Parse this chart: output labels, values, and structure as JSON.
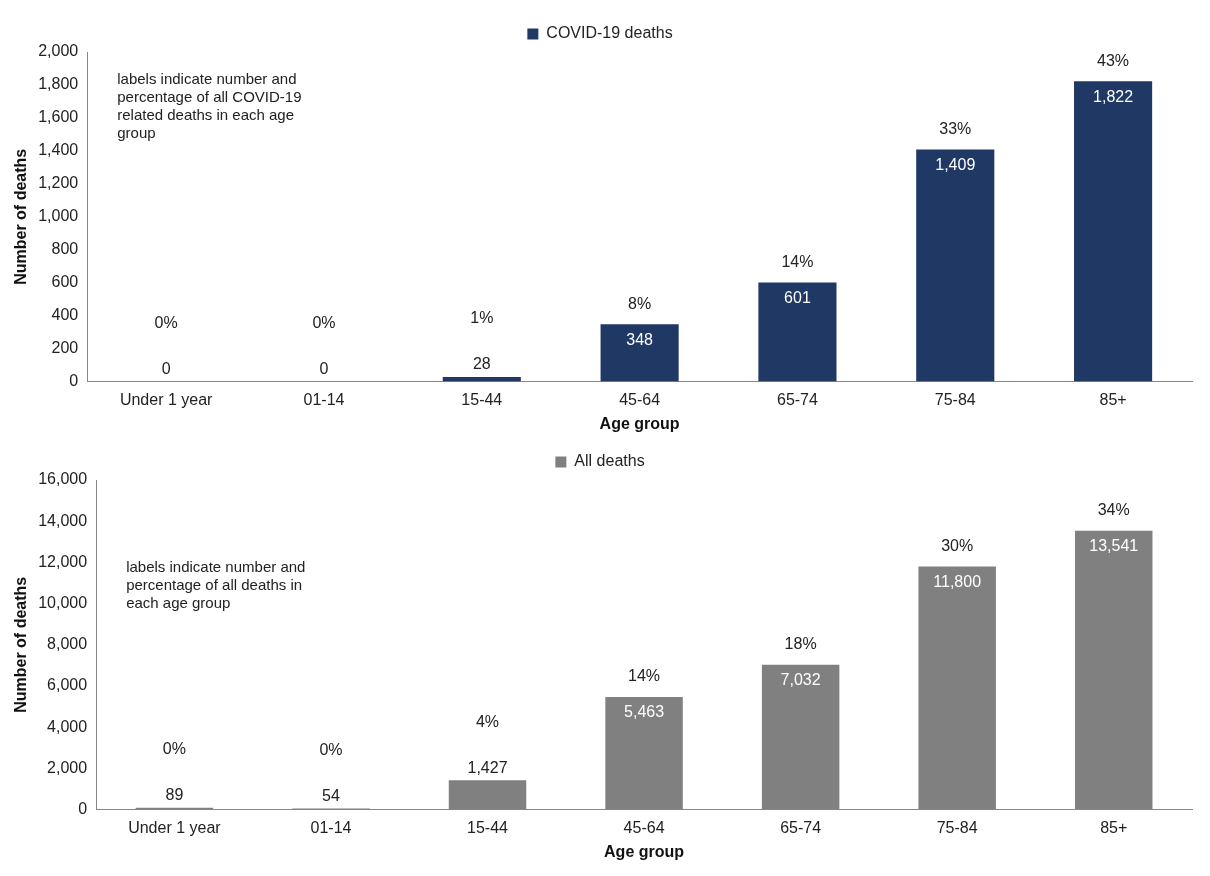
{
  "chart_data": [
    {
      "type": "bar",
      "categories": [
        "Under 1 year",
        "01-14",
        "15-44",
        "45-64",
        "65-74",
        "75-84",
        "85+"
      ],
      "series": [
        {
          "name": "COVID-19 deaths",
          "color": "#1f3864",
          "values": [
            0,
            0,
            28,
            348,
            601,
            1409,
            1822
          ],
          "value_labels": [
            "0",
            "0",
            "28",
            "348",
            "601",
            "1,409",
            "1,822"
          ]
        }
      ],
      "ylim": [
        0,
        2000
      ],
      "yticks": [
        {
          "value": 0,
          "label": "0"
        },
        {
          "value": 200,
          "label": "200"
        },
        {
          "value": 400,
          "label": "400"
        },
        {
          "value": 600,
          "label": "600"
        },
        {
          "value": 800,
          "label": "800"
        },
        {
          "value": 1000,
          "label": "1,000"
        },
        {
          "value": 1200,
          "label": "1,200"
        },
        {
          "value": 1400,
          "label": "1,400"
        },
        {
          "value": 1600,
          "label": "1,600"
        },
        {
          "value": 1800,
          "label": "1,800"
        },
        {
          "value": 2000,
          "label": "2,000"
        }
      ],
      "xlabel": "Age group",
      "ylabel": "Number of deaths",
      "legend": "top",
      "grid": false,
      "annotations": [
        "labels indicate number and percentage of all COVID-19 related deaths in each age group",
        "0%",
        "0%",
        "1%",
        "8%",
        "14%",
        "33%",
        "43%"
      ]
    },
    {
      "type": "bar",
      "categories": [
        "Under 1 year",
        "01-14",
        "15-44",
        "45-64",
        "65-74",
        "75-84",
        "85+"
      ],
      "series": [
        {
          "name": "All deaths",
          "color": "#808080",
          "values": [
            89,
            54,
            1427,
            5463,
            7032,
            11800,
            13541
          ],
          "value_labels": [
            "89",
            "54",
            "1,427",
            "5,463",
            "7,032",
            "11,800",
            "13,541"
          ]
        }
      ],
      "ylim": [
        0,
        16000
      ],
      "yticks": [
        {
          "value": 0,
          "label": "0"
        },
        {
          "value": 2000,
          "label": "2,000"
        },
        {
          "value": 4000,
          "label": "4,000"
        },
        {
          "value": 6000,
          "label": "6,000"
        },
        {
          "value": 8000,
          "label": "8,000"
        },
        {
          "value": 10000,
          "label": "10,000"
        },
        {
          "value": 12000,
          "label": "12,000"
        },
        {
          "value": 14000,
          "label": "14,000"
        },
        {
          "value": 16000,
          "label": "16,000"
        }
      ],
      "xlabel": "Age group",
      "ylabel": "Number of deaths",
      "legend": "top",
      "grid": false,
      "annotations": [
        "labels indicate number and percentage of all deaths in each age group",
        "0%",
        "0%",
        "4%",
        "14%",
        "18%",
        "30%",
        "34%"
      ]
    }
  ]
}
